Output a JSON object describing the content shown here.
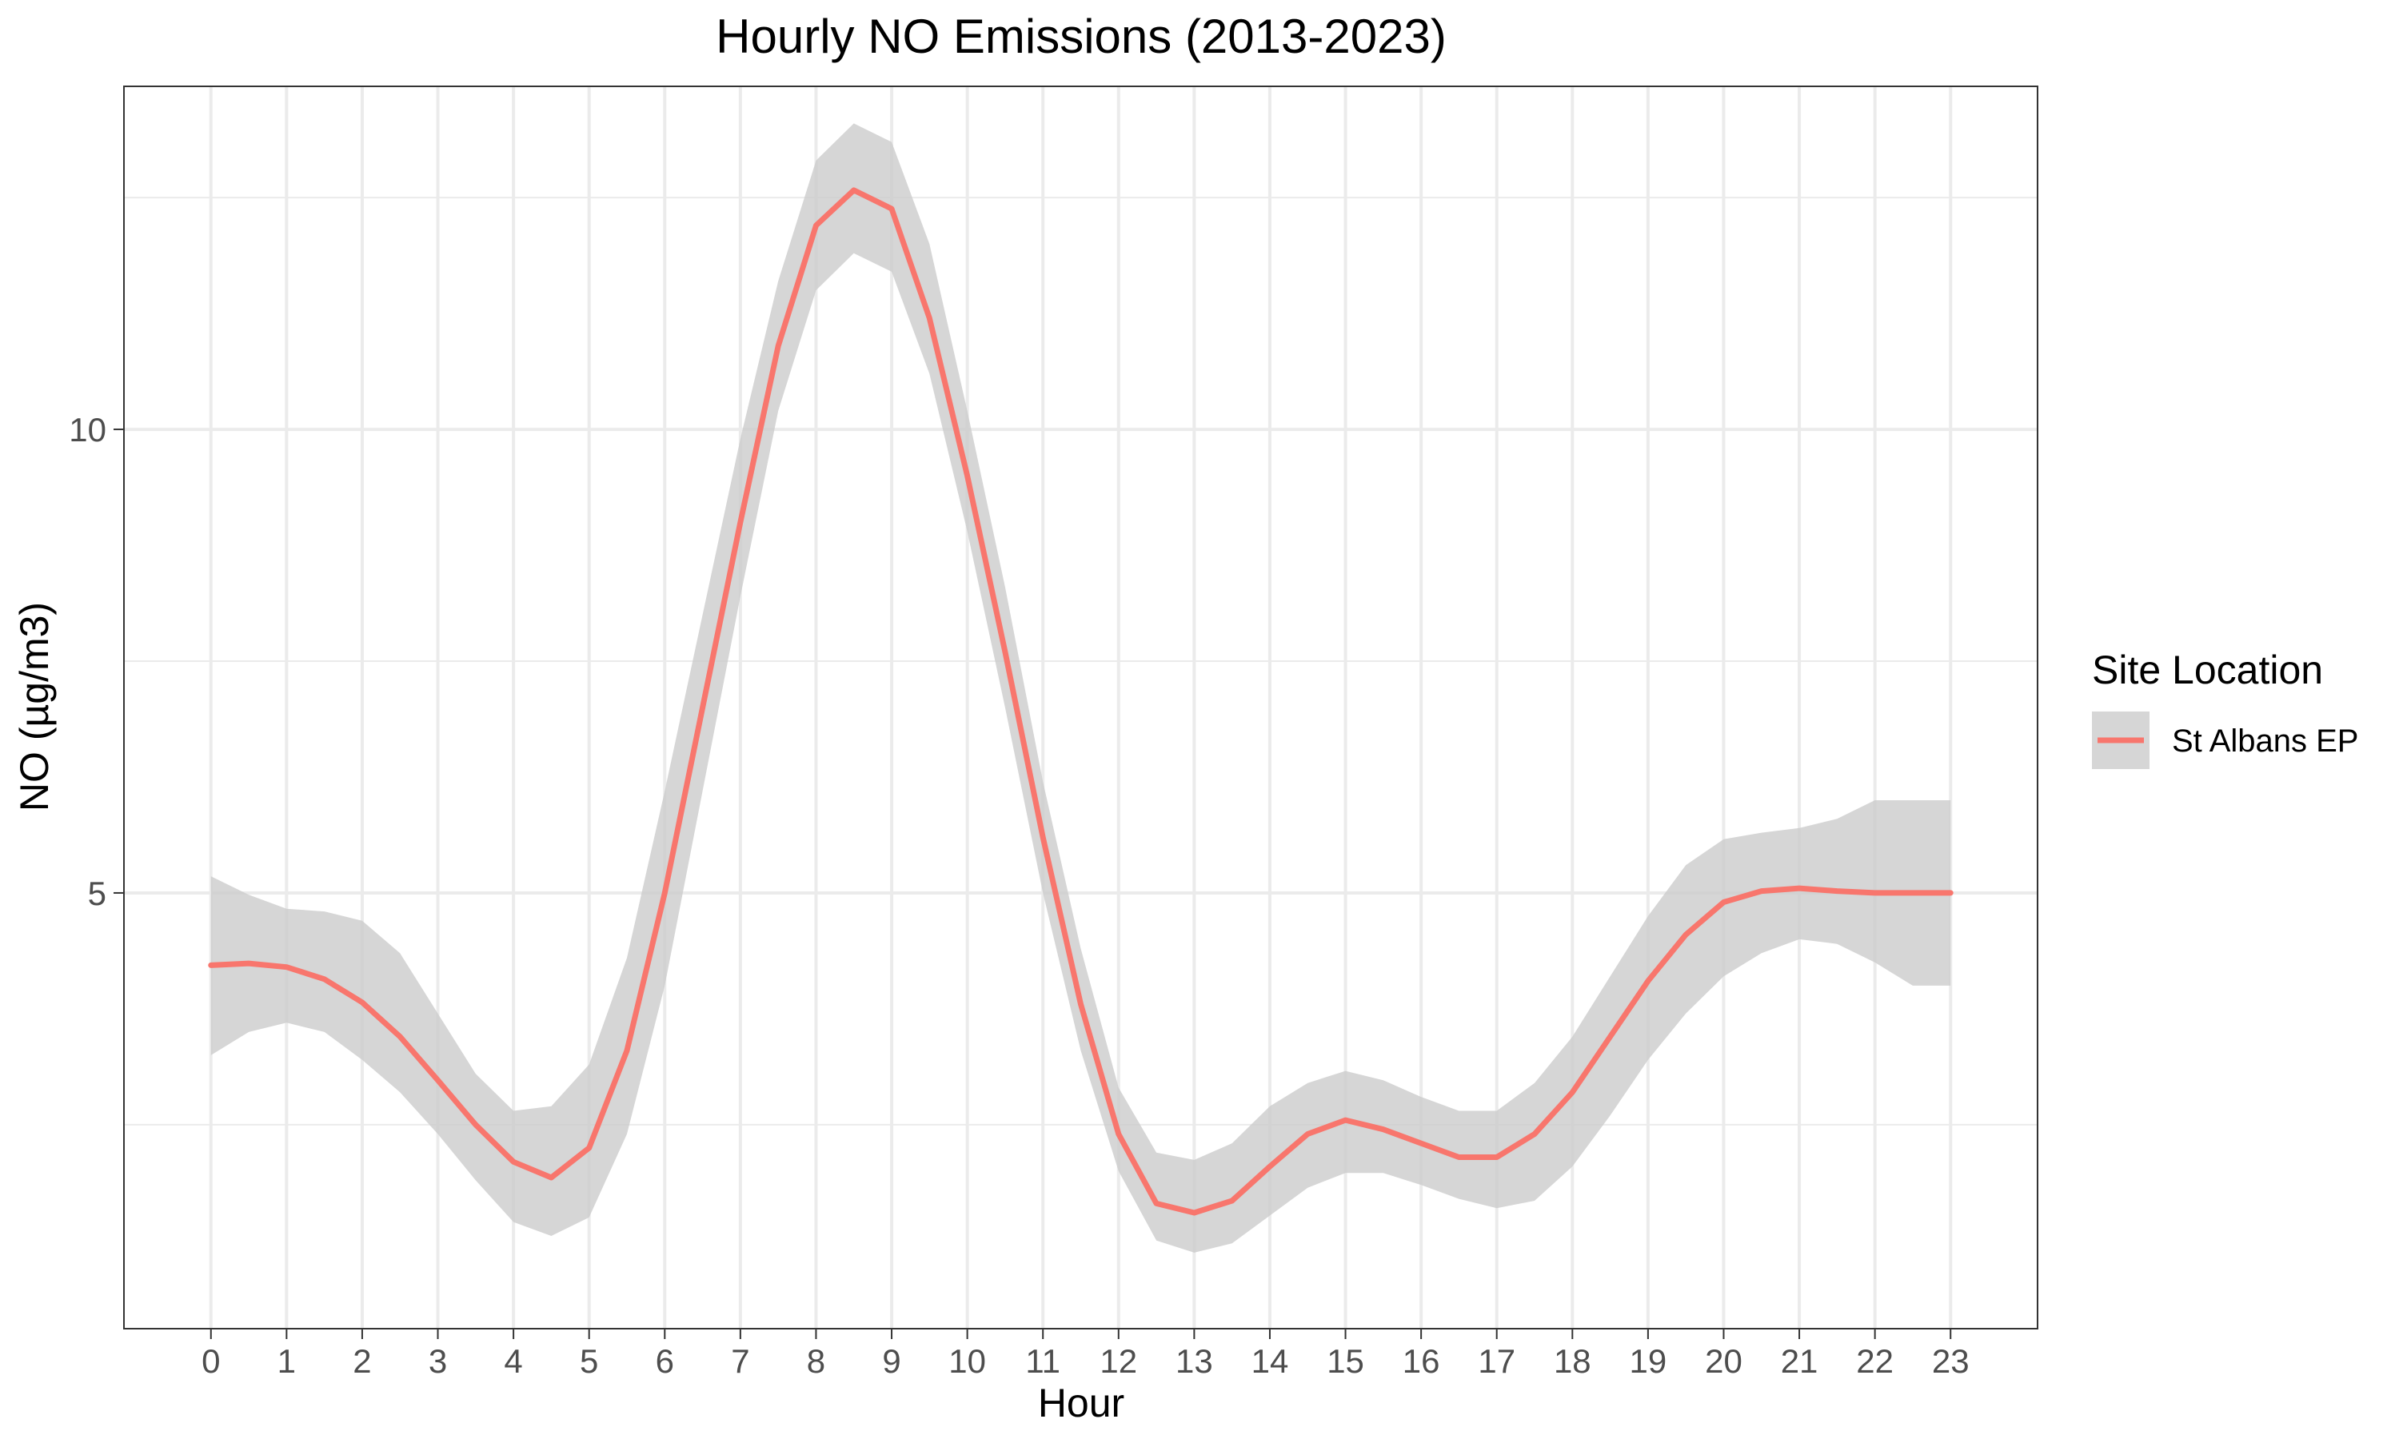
{
  "chart_data": {
    "type": "line",
    "title": "Hourly NO Emissions (2013-2023)",
    "xlabel": "Hour",
    "ylabel": "NO (µg/m3)",
    "xlim": [
      -1.15,
      24.15
    ],
    "ylim": [
      0.3,
      13.7
    ],
    "x_ticks": [
      0,
      1,
      2,
      3,
      4,
      5,
      6,
      7,
      8,
      9,
      10,
      11,
      12,
      13,
      14,
      15,
      16,
      17,
      18,
      19,
      20,
      21,
      22,
      23
    ],
    "y_ticks": [
      5,
      10
    ],
    "grid": true,
    "legend": {
      "title": "Site Location",
      "position": "right",
      "entries": [
        "St Albans EP"
      ]
    },
    "series": [
      {
        "name": "St Albans EP",
        "color": "#f8766d",
        "ribbon_color": "#cccccc",
        "x": [
          0,
          0.5,
          1,
          1.5,
          2,
          2.5,
          3,
          3.5,
          4,
          4.5,
          5,
          5.5,
          6,
          6.5,
          7,
          7.5,
          8,
          8.5,
          9,
          9.5,
          10,
          10.5,
          11,
          11.5,
          12,
          12.5,
          13,
          13.5,
          14,
          14.5,
          15,
          15.5,
          16,
          16.5,
          17,
          17.5,
          18,
          18.5,
          19,
          19.5,
          20,
          20.5,
          21,
          21.5,
          22,
          22.5,
          23
        ],
        "y": [
          4.22,
          4.24,
          4.2,
          4.07,
          3.82,
          3.45,
          2.98,
          2.5,
          2.1,
          1.93,
          2.25,
          3.3,
          5.0,
          7.0,
          9.0,
          10.9,
          12.2,
          12.58,
          12.38,
          11.2,
          9.5,
          7.6,
          5.6,
          3.8,
          2.4,
          1.65,
          1.55,
          1.68,
          2.05,
          2.4,
          2.55,
          2.45,
          2.3,
          2.15,
          2.15,
          2.4,
          2.85,
          3.45,
          4.05,
          4.55,
          4.9,
          5.02,
          5.05,
          5.02,
          5.0,
          5.0,
          5.0
        ],
        "lower": [
          3.25,
          3.5,
          3.6,
          3.5,
          3.2,
          2.85,
          2.4,
          1.9,
          1.45,
          1.3,
          1.5,
          2.4,
          4.0,
          6.1,
          8.2,
          10.2,
          11.5,
          11.9,
          11.7,
          10.6,
          8.9,
          7.0,
          5.0,
          3.3,
          2.0,
          1.25,
          1.12,
          1.22,
          1.52,
          1.82,
          1.98,
          1.98,
          1.85,
          1.7,
          1.6,
          1.68,
          2.05,
          2.6,
          3.2,
          3.7,
          4.1,
          4.35,
          4.5,
          4.45,
          4.25,
          4.0,
          4.0
        ],
        "upper": [
          5.18,
          4.98,
          4.83,
          4.8,
          4.7,
          4.35,
          3.7,
          3.05,
          2.65,
          2.7,
          3.15,
          4.3,
          6.1,
          8.0,
          9.9,
          11.6,
          12.9,
          13.3,
          13.1,
          12.0,
          10.2,
          8.3,
          6.2,
          4.4,
          2.9,
          2.2,
          2.12,
          2.3,
          2.7,
          2.95,
          3.08,
          2.98,
          2.8,
          2.65,
          2.65,
          2.95,
          3.45,
          4.1,
          4.75,
          5.3,
          5.58,
          5.65,
          5.7,
          5.8,
          6.0,
          6.0,
          6.0
        ]
      }
    ]
  }
}
